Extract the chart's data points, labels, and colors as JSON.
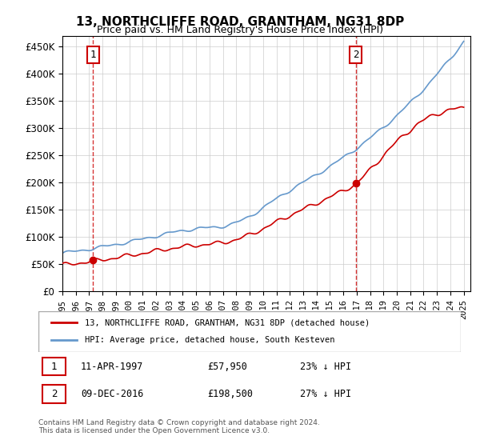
{
  "title": "13, NORTHCLIFFE ROAD, GRANTHAM, NG31 8DP",
  "subtitle": "Price paid vs. HM Land Registry's House Price Index (HPI)",
  "ylabel_ticks": [
    "£0",
    "£50K",
    "£100K",
    "£150K",
    "£200K",
    "£250K",
    "£300K",
    "£350K",
    "£400K",
    "£450K"
  ],
  "ytick_values": [
    0,
    50000,
    100000,
    150000,
    200000,
    250000,
    300000,
    350000,
    400000,
    450000
  ],
  "ylim": [
    0,
    470000
  ],
  "xlim_start": 1995.0,
  "xlim_end": 2025.5,
  "purchase1_x": 1997.278,
  "purchase1_y": 57950,
  "purchase2_x": 2016.94,
  "purchase2_y": 198500,
  "vline1_x": 1997.278,
  "vline2_x": 2016.94,
  "legend_entry1": "13, NORTHCLIFFE ROAD, GRANTHAM, NG31 8DP (detached house)",
  "legend_entry2": "HPI: Average price, detached house, South Kesteven",
  "table_row1_num": "1",
  "table_row1_date": "11-APR-1997",
  "table_row1_price": "£57,950",
  "table_row1_hpi": "23% ↓ HPI",
  "table_row2_num": "2",
  "table_row2_date": "09-DEC-2016",
  "table_row2_price": "£198,500",
  "table_row2_hpi": "27% ↓ HPI",
  "footnote": "Contains HM Land Registry data © Crown copyright and database right 2024.\nThis data is licensed under the Open Government Licence v3.0.",
  "line_color_price": "#cc0000",
  "line_color_hpi": "#6699cc",
  "vline_color": "#cc0000",
  "marker_color_price": "#cc0000",
  "bg_color": "#ffffff",
  "grid_color": "#cccccc",
  "label_box_color": "#cc0000",
  "xtick_years": [
    1995,
    1996,
    1997,
    1998,
    1999,
    2000,
    2001,
    2002,
    2003,
    2004,
    2005,
    2006,
    2007,
    2008,
    2009,
    2010,
    2011,
    2012,
    2013,
    2014,
    2015,
    2016,
    2017,
    2018,
    2019,
    2020,
    2021,
    2022,
    2023,
    2024,
    2025
  ]
}
